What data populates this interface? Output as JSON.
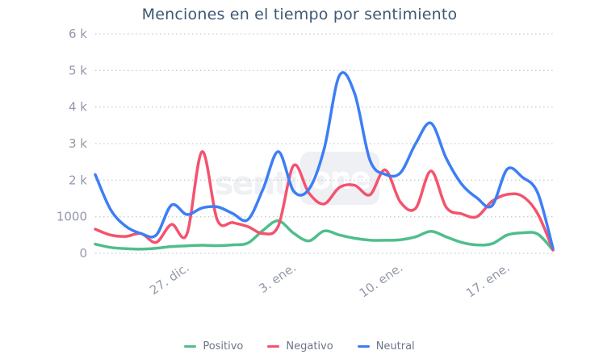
{
  "chart": {
    "title": "Menciones en el tiempo por sentimiento",
    "watermark": {
      "prefix": "senti",
      "boxed_suffix": "one"
    },
    "legend": [
      {
        "label": "Positivo",
        "color": "#4FBE8B"
      },
      {
        "label": "Negativo",
        "color": "#F4536E"
      },
      {
        "label": "Neutral",
        "color": "#3D7EF5"
      }
    ]
  },
  "chart_data": {
    "type": "line",
    "title": "Menciones en el tiempo por sentimiento",
    "line_shape": "spline",
    "grid": "horizontal-dotted",
    "legend_position": "bottom-center",
    "ylim": [
      0,
      6000
    ],
    "y_tick_values": [
      0,
      1000,
      2000,
      3000,
      4000,
      5000,
      6000
    ],
    "y_tick_labels": [
      "0",
      "1000",
      "2 k",
      "3 k",
      "4 k",
      "5 k",
      "6 k"
    ],
    "n_points": 31,
    "x_tick_indices": [
      6,
      13,
      20,
      27
    ],
    "x_tick_labels": [
      "27. dic.",
      "3. ene.",
      "10. ene.",
      "17. ene."
    ],
    "x_tick_rotation_deg": -35,
    "series": [
      {
        "name": "Positivo",
        "color": "#4FBE8B",
        "values": [
          250,
          160,
          125,
          115,
          140,
          185,
          205,
          220,
          210,
          230,
          280,
          630,
          890,
          550,
          340,
          610,
          500,
          410,
          360,
          355,
          370,
          450,
          600,
          450,
          300,
          230,
          260,
          500,
          560,
          525,
          85
        ]
      },
      {
        "name": "Negativo",
        "color": "#F4536E",
        "values": [
          660,
          500,
          460,
          540,
          300,
          790,
          520,
          2780,
          910,
          840,
          730,
          540,
          750,
          2400,
          1650,
          1350,
          1800,
          1860,
          1600,
          2280,
          1400,
          1230,
          2250,
          1260,
          1080,
          1000,
          1420,
          1610,
          1560,
          1080,
          90
        ]
      },
      {
        "name": "Neutral",
        "color": "#3D7EF5",
        "values": [
          2150,
          1200,
          740,
          540,
          500,
          1320,
          1060,
          1240,
          1270,
          1090,
          920,
          1760,
          2780,
          1700,
          1750,
          2850,
          4860,
          4370,
          2550,
          2160,
          2200,
          3000,
          3560,
          2600,
          1900,
          1520,
          1300,
          2300,
          2080,
          1650,
          130
        ]
      }
    ]
  },
  "colors": {
    "background": "#FFFFFF",
    "title_text": "#3E5872",
    "axis_tick_text": "#9299A9",
    "gridline": "#C9CDD5",
    "legend_text": "#6D7586",
    "watermark": "#EEF0F4"
  }
}
